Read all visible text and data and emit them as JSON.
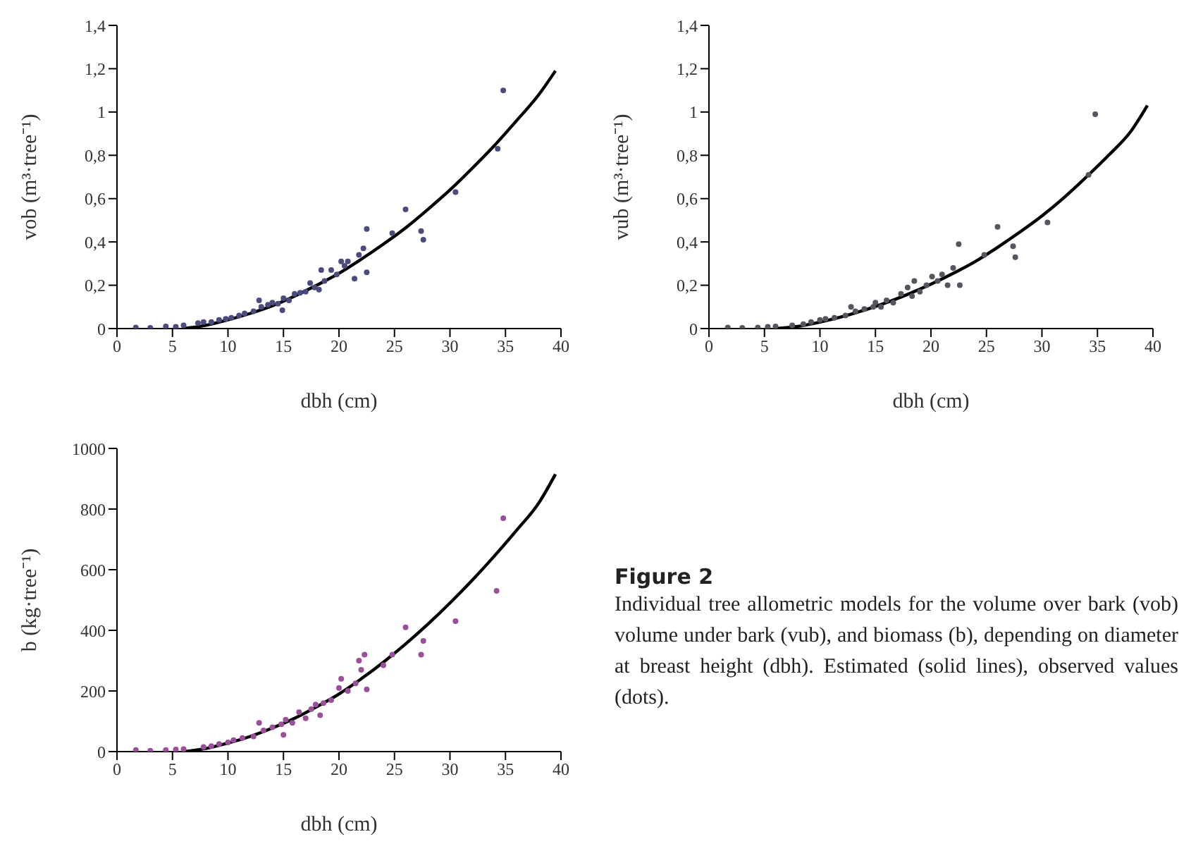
{
  "chart_data": [
    {
      "type": "scatter",
      "xlabel": "dbh (cm)",
      "ylabel": "vob (m³·tree⁻¹)",
      "xlim": [
        0,
        40
      ],
      "xticks": [
        0,
        5,
        10,
        15,
        20,
        25,
        30,
        35,
        40
      ],
      "ylim": [
        0,
        1.4
      ],
      "yticks": [
        0,
        {
          "value": 0.2,
          "label": "0,2"
        },
        {
          "value": 0.4,
          "label": "0,4"
        },
        {
          "value": 0.6,
          "label": "0,6"
        },
        {
          "value": 0.8,
          "label": "0,8"
        },
        1,
        {
          "value": 1.2,
          "label": "1,2"
        },
        {
          "value": 1.4,
          "label": "1,4"
        }
      ],
      "series": [
        {
          "type": "scatter",
          "marker": "circle",
          "color": "#4b4b7d",
          "x": [
            1.7,
            3,
            4.4,
            5.3,
            6,
            7.3,
            7.8,
            8.5,
            9.2,
            9.8,
            10.3,
            11,
            11.5,
            12.3,
            12.8,
            13,
            13.6,
            14,
            14.5,
            14.9,
            15,
            15.5,
            16,
            16.5,
            17,
            17.4,
            17.8,
            18.2,
            18.4,
            18.7,
            19.3,
            19.8,
            20.2,
            20.5,
            20.8,
            21.4,
            21.8,
            22.2,
            22.5,
            22.5,
            24.8,
            26,
            27.4,
            27.6,
            30.5,
            34.3,
            34.8
          ],
          "values": [
            0.005,
            0.003,
            0.01,
            0.008,
            0.015,
            0.025,
            0.03,
            0.03,
            0.04,
            0.045,
            0.05,
            0.06,
            0.07,
            0.08,
            0.13,
            0.1,
            0.11,
            0.12,
            0.115,
            0.085,
            0.14,
            0.13,
            0.16,
            0.165,
            0.17,
            0.21,
            0.19,
            0.18,
            0.27,
            0.22,
            0.27,
            0.25,
            0.31,
            0.29,
            0.31,
            0.23,
            0.34,
            0.37,
            0.46,
            0.26,
            0.44,
            0.55,
            0.45,
            0.41,
            0.63,
            0.83,
            1.1
          ]
        },
        {
          "type": "line",
          "marker": "none",
          "color": "#000000",
          "x": [
            6,
            8,
            10,
            12,
            14,
            16,
            18,
            20,
            22,
            24,
            26,
            28,
            30,
            32,
            34,
            36,
            38,
            39.5
          ],
          "values": [
            0,
            0.015,
            0.04,
            0.07,
            0.105,
            0.15,
            0.2,
            0.255,
            0.32,
            0.39,
            0.465,
            0.55,
            0.64,
            0.74,
            0.845,
            0.96,
            1.08,
            1.19
          ]
        }
      ]
    },
    {
      "type": "scatter",
      "xlabel": "dbh (cm)",
      "ylabel": "vub (m³·tree⁻¹)",
      "xlim": [
        0,
        40
      ],
      "xticks": [
        0,
        5,
        10,
        15,
        20,
        25,
        30,
        35,
        40
      ],
      "ylim": [
        0,
        1.4
      ],
      "yticks": [
        0,
        {
          "value": 0.2,
          "label": "0,2"
        },
        {
          "value": 0.4,
          "label": "0,4"
        },
        {
          "value": 0.6,
          "label": "0,6"
        },
        {
          "value": 0.8,
          "label": "0,8"
        },
        1,
        {
          "value": 1.2,
          "label": "1,2"
        },
        {
          "value": 1.4,
          "label": "1,4"
        }
      ],
      "series": [
        {
          "type": "scatter",
          "marker": "circle",
          "color": "#555560",
          "x": [
            1.7,
            3,
            4.4,
            5.3,
            6,
            7.5,
            8.5,
            9.2,
            10,
            10.5,
            11.3,
            12.3,
            12.8,
            13.2,
            14,
            14.8,
            15,
            15.5,
            16,
            16.6,
            17.3,
            17.9,
            18.3,
            18.5,
            19,
            19.6,
            20.1,
            20.6,
            21,
            21.5,
            22,
            22.5,
            22.6,
            24.8,
            26,
            27.4,
            27.6,
            30.5,
            34.2,
            34.8
          ],
          "values": [
            0.005,
            0.003,
            0.005,
            0.008,
            0.01,
            0.015,
            0.02,
            0.03,
            0.04,
            0.045,
            0.05,
            0.06,
            0.1,
            0.08,
            0.09,
            0.1,
            0.12,
            0.1,
            0.13,
            0.12,
            0.16,
            0.19,
            0.15,
            0.22,
            0.17,
            0.2,
            0.24,
            0.22,
            0.25,
            0.2,
            0.28,
            0.39,
            0.2,
            0.34,
            0.47,
            0.38,
            0.33,
            0.49,
            0.71,
            0.99
          ]
        },
        {
          "type": "line",
          "marker": "none",
          "color": "#000000",
          "x": [
            6,
            8,
            10,
            12,
            14,
            16,
            18,
            20,
            22,
            24,
            26,
            28,
            30,
            32,
            34,
            36,
            38,
            39.5
          ],
          "values": [
            0,
            0.01,
            0.03,
            0.055,
            0.085,
            0.12,
            0.16,
            0.205,
            0.255,
            0.31,
            0.375,
            0.445,
            0.52,
            0.605,
            0.7,
            0.8,
            0.91,
            1.03
          ]
        }
      ]
    },
    {
      "type": "scatter",
      "xlabel": "dbh (cm)",
      "ylabel": "b (kg·tree⁻¹)",
      "xlim": [
        0,
        40
      ],
      "xticks": [
        0,
        5,
        10,
        15,
        20,
        25,
        30,
        35,
        40
      ],
      "ylim": [
        0,
        1000
      ],
      "yticks": [
        0,
        200,
        400,
        600,
        800,
        1000
      ],
      "series": [
        {
          "type": "scatter",
          "marker": "circle",
          "color": "#9a4f9a",
          "x": [
            1.7,
            3,
            4.4,
            5.3,
            6,
            7.8,
            8.5,
            9.2,
            10,
            10.5,
            11.3,
            12.3,
            12.8,
            13.2,
            14,
            14.8,
            15,
            15.2,
            15.8,
            16.4,
            17,
            17.5,
            17.9,
            18.3,
            18.6,
            19.3,
            20,
            20.2,
            20.8,
            21.5,
            21.8,
            22,
            22.3,
            22.5,
            24,
            24.8,
            26,
            27.4,
            27.6,
            30.5,
            34.2,
            34.8
          ],
          "values": [
            5,
            3,
            5,
            7,
            8,
            15,
            18,
            25,
            30,
            38,
            45,
            50,
            95,
            70,
            80,
            90,
            55,
            105,
            95,
            130,
            110,
            140,
            155,
            120,
            160,
            170,
            210,
            240,
            200,
            225,
            300,
            270,
            320,
            205,
            285,
            320,
            410,
            320,
            365,
            430,
            530,
            770
          ]
        },
        {
          "type": "line",
          "marker": "none",
          "color": "#000000",
          "x": [
            6,
            8,
            10,
            12,
            14,
            16,
            18,
            20,
            22,
            24,
            26,
            28,
            30,
            32,
            34,
            36,
            38,
            39.5
          ],
          "values": [
            0,
            10,
            28,
            50,
            78,
            110,
            148,
            190,
            240,
            295,
            355,
            420,
            490,
            565,
            645,
            730,
            820,
            915
          ]
        }
      ]
    },
    {
      "type": "other",
      "title": "Figure 2",
      "annotations": [
        "Individual tree allometric models for the volume over bark (vob) volume under bark (vub), and biomass (b), depending on diameter at breast height (dbh). Estimated (solid lines), observed values (dots)."
      ]
    }
  ]
}
